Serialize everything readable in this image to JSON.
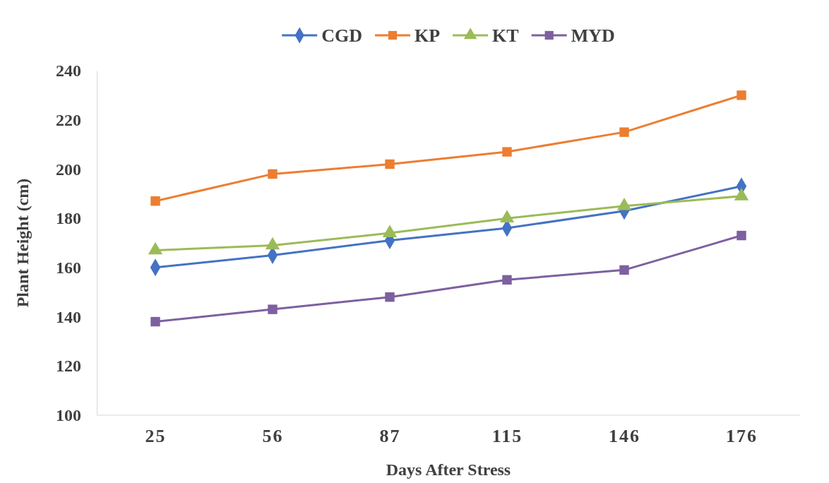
{
  "chart_data": {
    "type": "line",
    "xlabel": "Days After Stress",
    "ylabel": "Plant Height (cm)",
    "categories": [
      "25",
      "56",
      "87",
      "115",
      "146",
      "176"
    ],
    "ylim": [
      100,
      240
    ],
    "yticks": [
      100,
      120,
      140,
      160,
      180,
      200,
      220,
      240
    ],
    "grid": false,
    "legend": "top",
    "series": [
      {
        "name": "CGD",
        "color": "#4472c4",
        "marker": "diamond",
        "values": [
          160,
          165,
          171,
          176,
          183,
          193
        ]
      },
      {
        "name": "KP",
        "color": "#ed7d31",
        "marker": "square",
        "values": [
          187,
          198,
          202,
          207,
          215,
          230
        ]
      },
      {
        "name": "KT",
        "color": "#9bbb59",
        "marker": "triangle",
        "values": [
          167,
          169,
          174,
          180,
          185,
          189
        ]
      },
      {
        "name": "MYD",
        "color": "#7d60a0",
        "marker": "square",
        "values": [
          138,
          143,
          148,
          155,
          159,
          173
        ]
      }
    ]
  }
}
